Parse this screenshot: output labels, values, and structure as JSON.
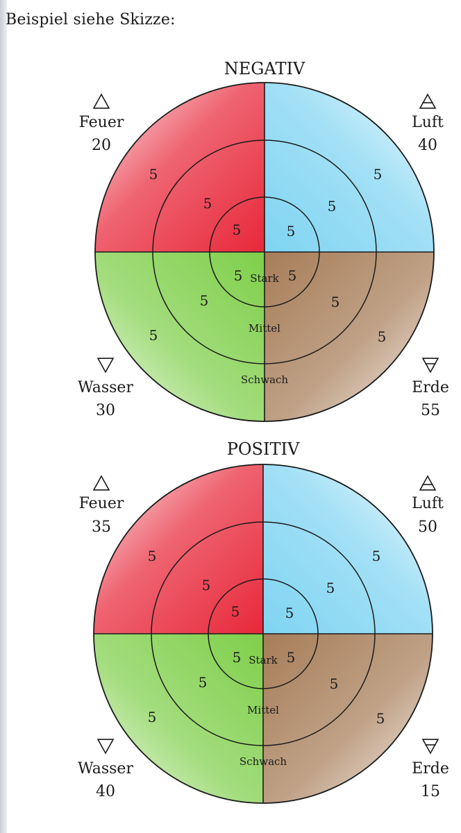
{
  "intro_text": "Beispiel siehe Skizze:",
  "ring_labels": [
    "Stark",
    "Mittel",
    "Schwach"
  ],
  "element_symbols": {
    "Feuer": "fire-triangle-up",
    "Luft": "air-triangle-up-bar",
    "Wasser": "water-triangle-down",
    "Erde": "earth-triangle-down-bar"
  },
  "colors": {
    "feuer": "#e8283a",
    "luft": "#7fd4f2",
    "wasser": "#7fcf4a",
    "erde": "#a77d58"
  },
  "diagrams": [
    {
      "title": "NEGATIV",
      "quadrants": {
        "feuer": {
          "label": "Feuer",
          "value": "20",
          "rings": [
            "5",
            "5",
            "5"
          ]
        },
        "luft": {
          "label": "Luft",
          "value": "40",
          "rings": [
            "5",
            "5",
            "5"
          ]
        },
        "wasser": {
          "label": "Wasser",
          "value": "30",
          "rings": [
            "5",
            "5",
            "5"
          ]
        },
        "erde": {
          "label": "Erde",
          "value": "55",
          "rings": [
            "5",
            "5",
            "5"
          ]
        }
      }
    },
    {
      "title": "POSITIV",
      "quadrants": {
        "feuer": {
          "label": "Feuer",
          "value": "35",
          "rings": [
            "5",
            "5",
            "5"
          ]
        },
        "luft": {
          "label": "Luft",
          "value": "50",
          "rings": [
            "5",
            "5",
            "5"
          ]
        },
        "wasser": {
          "label": "Wasser",
          "value": "40",
          "rings": [
            "5",
            "5",
            "5"
          ]
        },
        "erde": {
          "label": "Erde",
          "value": "15",
          "rings": [
            "5",
            "5",
            "5"
          ]
        }
      }
    }
  ]
}
